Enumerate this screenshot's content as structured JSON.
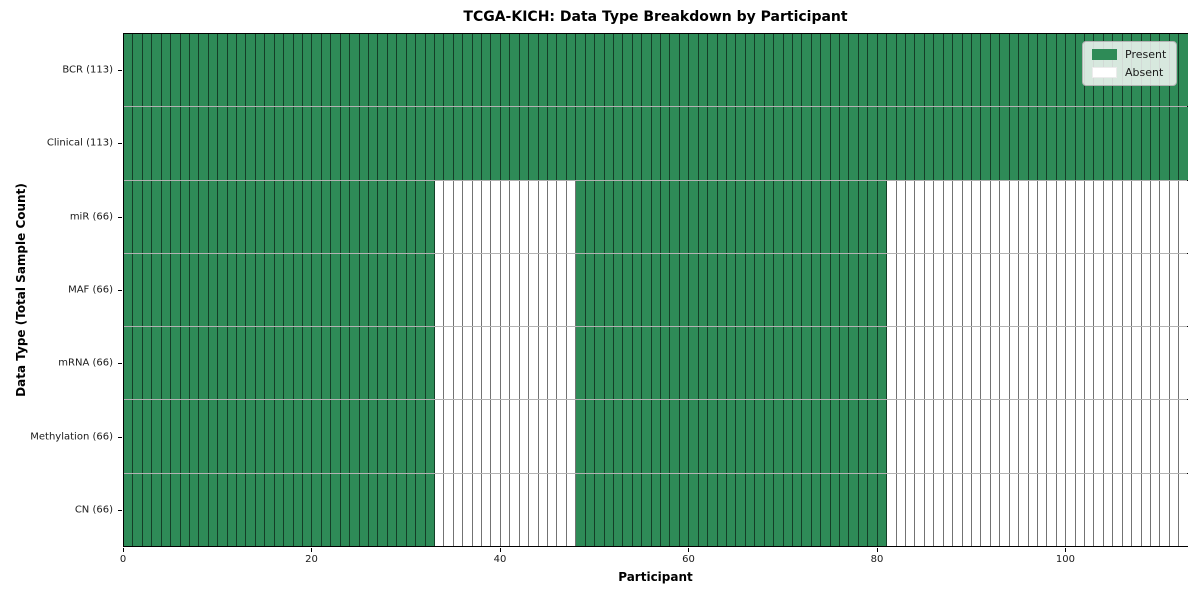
{
  "chart_data": {
    "type": "heatmap",
    "title": "TCGA-KICH: Data Type Breakdown by Participant",
    "xlabel": "Participant",
    "ylabel": "Data Type (Total Sample Count)",
    "x_ticks": [
      0,
      20,
      40,
      60,
      80,
      100
    ],
    "x_range": [
      0,
      113
    ],
    "n_participants": 113,
    "grid": false,
    "legend_position": "upper right",
    "rows": [
      {
        "label": "BCR (113)",
        "data_type": "BCR",
        "present_count": 113,
        "present_ranges": [
          [
            0,
            113
          ]
        ]
      },
      {
        "label": "Clinical (113)",
        "data_type": "Clinical",
        "present_count": 113,
        "present_ranges": [
          [
            0,
            113
          ]
        ]
      },
      {
        "label": "miR (66)",
        "data_type": "miR",
        "present_count": 66,
        "present_ranges": [
          [
            0,
            33
          ],
          [
            48,
            81
          ]
        ]
      },
      {
        "label": "MAF (66)",
        "data_type": "MAF",
        "present_count": 66,
        "present_ranges": [
          [
            0,
            33
          ],
          [
            48,
            81
          ]
        ]
      },
      {
        "label": "mRNA (66)",
        "data_type": "mRNA",
        "present_count": 66,
        "present_ranges": [
          [
            0,
            33
          ],
          [
            48,
            81
          ]
        ]
      },
      {
        "label": "Methylation (66)",
        "data_type": "Methylation",
        "present_count": 66,
        "present_ranges": [
          [
            0,
            33
          ],
          [
            48,
            81
          ]
        ]
      },
      {
        "label": "CN (66)",
        "data_type": "CN",
        "present_count": 66,
        "present_ranges": [
          [
            0,
            33
          ],
          [
            48,
            81
          ]
        ]
      }
    ],
    "legend": [
      {
        "label": "Present",
        "color": "#2e8b57"
      },
      {
        "label": "Absent",
        "color": "#ffffff"
      }
    ],
    "colors": {
      "present": "#2e8b57",
      "absent": "#ffffff",
      "cell_edge": "#000000"
    }
  }
}
